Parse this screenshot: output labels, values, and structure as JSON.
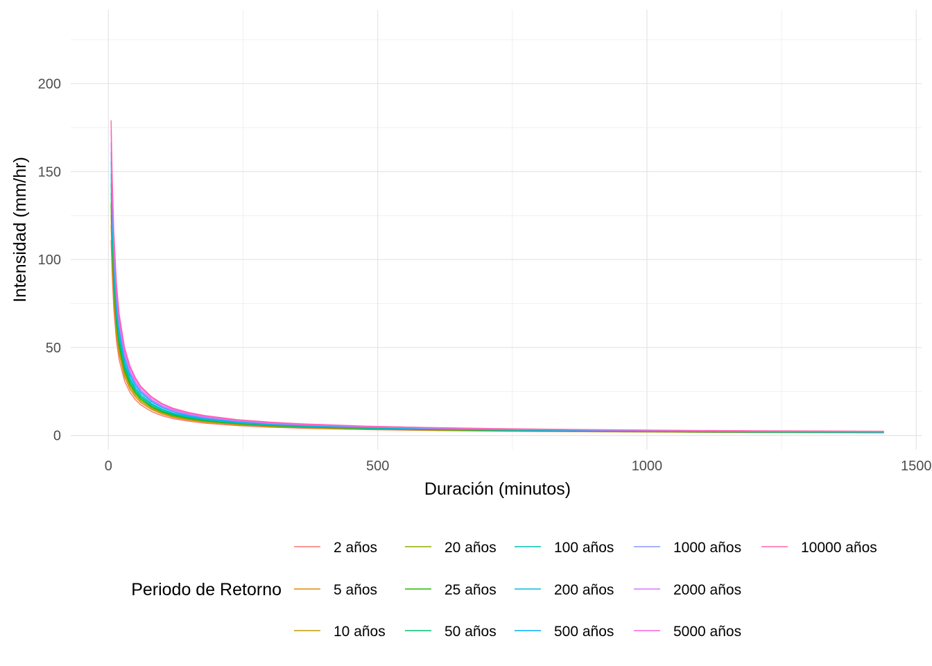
{
  "chart_data": {
    "type": "line",
    "title": "",
    "xlabel": "Duración (minutos)",
    "ylabel": "Intensidad (mm/hr)",
    "xlim": [
      -70,
      1510
    ],
    "ylim": [
      -8,
      242
    ],
    "x_ticks": [
      0,
      500,
      1000,
      1500
    ],
    "y_ticks": [
      0,
      50,
      100,
      150,
      200
    ],
    "grid": true,
    "legend": {
      "title": "Periodo de Retorno",
      "position": "bottom"
    },
    "x": [
      5,
      7,
      10,
      15,
      20,
      30,
      40,
      50,
      60,
      80,
      100,
      120,
      150,
      180,
      240,
      300,
      360,
      480,
      600,
      720,
      900,
      1080,
      1200,
      1440
    ],
    "series": [
      {
        "name": "2 años",
        "color": "#F8766D",
        "values": [
          111.0,
          91.1,
          71.8,
          53.4,
          42.8,
          30.9,
          24.5,
          20.3,
          17.4,
          13.6,
          11.2,
          9.6,
          8.1,
          7.0,
          5.6,
          4.7,
          4.1,
          3.3,
          2.8,
          2.4,
          2.1,
          1.8,
          1.7,
          1.5
        ]
      },
      {
        "name": "5 años",
        "color": "#E18A00",
        "values": [
          119.6,
          98.1,
          77.4,
          57.5,
          46.1,
          33.3,
          26.4,
          21.9,
          18.7,
          14.7,
          12.1,
          10.3,
          8.7,
          7.6,
          6.1,
          5.1,
          4.4,
          3.6,
          3.0,
          2.6,
          2.2,
          1.9,
          1.8,
          1.6
        ]
      },
      {
        "name": "10 años",
        "color": "#BE9C00",
        "values": [
          125.3,
          102.8,
          81.0,
          60.2,
          48.3,
          34.9,
          27.7,
          23.0,
          19.6,
          15.4,
          12.7,
          10.8,
          9.1,
          7.9,
          6.3,
          5.3,
          4.6,
          3.7,
          3.1,
          2.7,
          2.3,
          2.0,
          1.9,
          1.7
        ]
      },
      {
        "name": "20 años",
        "color": "#8CAB00",
        "values": [
          130.7,
          107.2,
          84.5,
          62.8,
          50.4,
          36.4,
          28.9,
          24.0,
          20.5,
          16.0,
          13.2,
          11.3,
          9.5,
          8.2,
          6.6,
          5.5,
          4.8,
          3.9,
          3.3,
          2.8,
          2.4,
          2.1,
          1.9,
          1.7
        ]
      },
      {
        "name": "25 años",
        "color": "#24B700",
        "values": [
          132.5,
          108.7,
          85.7,
          63.7,
          51.0,
          36.9,
          29.2,
          24.3,
          20.7,
          16.2,
          13.4,
          11.4,
          9.6,
          8.3,
          6.7,
          5.6,
          4.9,
          3.9,
          3.3,
          2.9,
          2.4,
          2.1,
          1.9,
          1.7
        ]
      },
      {
        "name": "50 años",
        "color": "#00BE70",
        "values": [
          137.9,
          113.1,
          89.2,
          66.3,
          53.1,
          38.4,
          30.4,
          25.3,
          21.6,
          16.9,
          13.9,
          11.9,
          10.0,
          8.7,
          6.9,
          5.8,
          5.1,
          4.1,
          3.5,
          3.0,
          2.5,
          2.2,
          2.0,
          1.8
        ]
      },
      {
        "name": "100 años",
        "color": "#00C1AB",
        "values": [
          143.3,
          117.5,
          92.7,
          68.9,
          55.2,
          39.9,
          31.6,
          26.3,
          22.4,
          17.6,
          14.5,
          12.4,
          10.4,
          9.0,
          7.2,
          6.0,
          5.3,
          4.2,
          3.6,
          3.1,
          2.6,
          2.3,
          2.1,
          1.9
        ]
      },
      {
        "name": "200 años",
        "color": "#00BBDA",
        "values": [
          148.8,
          122.0,
          96.3,
          71.5,
          57.3,
          41.4,
          32.8,
          27.3,
          23.3,
          18.2,
          15.0,
          12.8,
          10.8,
          9.3,
          7.5,
          6.3,
          5.5,
          4.4,
          3.7,
          3.2,
          2.7,
          2.4,
          2.2,
          1.9
        ]
      },
      {
        "name": "500 años",
        "color": "#00ACFC",
        "values": [
          155.9,
          127.9,
          100.8,
          74.9,
          60.1,
          43.4,
          34.4,
          28.6,
          24.4,
          19.1,
          15.8,
          13.5,
          11.3,
          9.8,
          7.8,
          6.6,
          5.7,
          4.6,
          3.9,
          3.4,
          2.9,
          2.5,
          2.3,
          2.0
        ]
      },
      {
        "name": "1000 años",
        "color": "#8B93FF",
        "values": [
          161.2,
          132.2,
          104.3,
          77.5,
          62.1,
          44.9,
          35.6,
          29.6,
          25.2,
          19.8,
          16.3,
          13.9,
          11.7,
          10.1,
          8.1,
          6.8,
          5.9,
          4.8,
          4.0,
          3.5,
          3.0,
          2.6,
          2.4,
          2.1
        ]
      },
      {
        "name": "2000 años",
        "color": "#D575FE",
        "values": [
          166.6,
          136.6,
          107.8,
          80.1,
          64.2,
          46.4,
          36.8,
          30.6,
          26.1,
          20.4,
          16.8,
          14.4,
          12.1,
          10.5,
          8.4,
          7.0,
          6.1,
          5.0,
          4.2,
          3.6,
          3.1,
          2.7,
          2.5,
          2.2
        ]
      },
      {
        "name": "5000 años",
        "color": "#F962DD",
        "values": [
          173.7,
          142.5,
          112.4,
          83.5,
          66.9,
          48.4,
          38.4,
          31.9,
          27.2,
          21.3,
          17.6,
          15.0,
          12.6,
          10.9,
          8.7,
          7.3,
          6.4,
          5.2,
          4.4,
          3.8,
          3.2,
          2.8,
          2.6,
          2.3
        ]
      },
      {
        "name": "10000 años",
        "color": "#FF65AC",
        "values": [
          179.1,
          146.9,
          115.8,
          86.1,
          69.0,
          49.9,
          39.6,
          32.9,
          28.0,
          22.0,
          18.1,
          15.5,
          13.0,
          11.3,
          9.0,
          7.6,
          6.6,
          5.3,
          4.5,
          3.9,
          3.3,
          2.9,
          2.7,
          2.4
        ]
      }
    ]
  }
}
